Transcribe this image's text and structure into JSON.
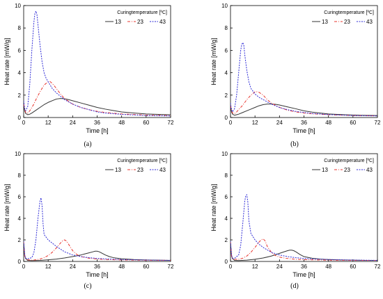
{
  "colors": {
    "13": "#333333",
    "23": "#e8342c",
    "43": "#2d2ad6",
    "axis": "#000000"
  },
  "chart_data": [
    {
      "type": "line",
      "panel_label": "(a)",
      "xlabel": "Time [h]",
      "ylabel": "Heat rate [mW/g]",
      "xlim": [
        0,
        72
      ],
      "ylim": [
        0,
        10
      ],
      "xticks": [
        0,
        12,
        24,
        36,
        48,
        60,
        72
      ],
      "yticks": [
        0,
        2,
        4,
        6,
        8,
        10
      ],
      "legend_title": "Curingtemperature [ºC]",
      "legend_position": "top-right",
      "series": [
        {
          "name": "13",
          "x": [
            0,
            0.5,
            1,
            2,
            3,
            4,
            6,
            8,
            10,
            12,
            14,
            16,
            18,
            20,
            22,
            24,
            28,
            32,
            36,
            40,
            44,
            48,
            54,
            60,
            66,
            72
          ],
          "y": [
            1.1,
            0.6,
            0.35,
            0.25,
            0.3,
            0.4,
            0.65,
            0.9,
            1.15,
            1.35,
            1.5,
            1.65,
            1.7,
            1.68,
            1.6,
            1.5,
            1.3,
            1.1,
            0.9,
            0.75,
            0.62,
            0.5,
            0.4,
            0.32,
            0.28,
            0.25
          ]
        },
        {
          "name": "23",
          "x": [
            0,
            0.5,
            1,
            2,
            3,
            4,
            5,
            6,
            8,
            10,
            12,
            13,
            14,
            16,
            18,
            20,
            24,
            28,
            32,
            36,
            40,
            48,
            60,
            72
          ],
          "y": [
            1.2,
            0.7,
            0.45,
            0.4,
            0.6,
            0.9,
            1.2,
            1.6,
            2.3,
            2.9,
            3.2,
            3.2,
            3.05,
            2.6,
            2.1,
            1.7,
            1.2,
            0.9,
            0.7,
            0.55,
            0.45,
            0.32,
            0.22,
            0.17
          ]
        },
        {
          "name": "43",
          "x": [
            0,
            0.5,
            1,
            2,
            3,
            4,
            5,
            5.5,
            6,
            6.5,
            7,
            8,
            9,
            10,
            11,
            12,
            14,
            16,
            18,
            20,
            24,
            28,
            32,
            36,
            40,
            48,
            60,
            72
          ],
          "y": [
            1.5,
            0.8,
            0.6,
            1.0,
            3.0,
            6.0,
            8.5,
            9.3,
            9.5,
            9.2,
            8.3,
            6.5,
            5.0,
            4.0,
            3.5,
            3.2,
            2.6,
            2.2,
            1.9,
            1.6,
            1.2,
            0.9,
            0.7,
            0.5,
            0.4,
            0.28,
            0.18,
            0.14
          ]
        }
      ]
    },
    {
      "type": "line",
      "panel_label": "(b)",
      "xlabel": "Time [h]",
      "ylabel": "Heat rate [mW/g]",
      "xlim": [
        0,
        72
      ],
      "ylim": [
        0,
        10
      ],
      "xticks": [
        0,
        12,
        24,
        36,
        48,
        60,
        72
      ],
      "yticks": [
        0,
        2,
        4,
        6,
        8,
        10
      ],
      "legend_title": "Curingtemperature [ºC]",
      "legend_position": "top-right",
      "series": [
        {
          "name": "13",
          "x": [
            0,
            0.5,
            1,
            2,
            3,
            4,
            6,
            8,
            10,
            12,
            14,
            16,
            18,
            20,
            22,
            24,
            28,
            32,
            36,
            40,
            48,
            56,
            64,
            72
          ],
          "y": [
            1.0,
            0.5,
            0.3,
            0.2,
            0.25,
            0.3,
            0.45,
            0.6,
            0.75,
            0.9,
            1.05,
            1.15,
            1.2,
            1.2,
            1.18,
            1.12,
            0.95,
            0.78,
            0.6,
            0.48,
            0.32,
            0.25,
            0.2,
            0.18
          ]
        },
        {
          "name": "23",
          "x": [
            0,
            0.5,
            1,
            2,
            3,
            4,
            6,
            8,
            10,
            12,
            13,
            14,
            16,
            18,
            20,
            24,
            28,
            32,
            36,
            40,
            48,
            60,
            72
          ],
          "y": [
            1.1,
            0.6,
            0.4,
            0.35,
            0.5,
            0.7,
            1.1,
            1.6,
            2.0,
            2.3,
            2.3,
            2.25,
            2.0,
            1.6,
            1.3,
            0.9,
            0.65,
            0.5,
            0.4,
            0.33,
            0.25,
            0.18,
            0.15
          ]
        },
        {
          "name": "43",
          "x": [
            0,
            0.5,
            1,
            2,
            3,
            4,
            5,
            5.5,
            6,
            6.5,
            7,
            8,
            9,
            10,
            12,
            14,
            16,
            18,
            20,
            24,
            28,
            32,
            36,
            40,
            48,
            60,
            72
          ],
          "y": [
            1.3,
            0.7,
            0.5,
            0.8,
            2.0,
            4.0,
            6.0,
            6.5,
            6.7,
            6.5,
            5.6,
            4.2,
            3.2,
            2.6,
            2.1,
            1.8,
            1.6,
            1.4,
            1.2,
            0.9,
            0.7,
            0.55,
            0.45,
            0.36,
            0.26,
            0.18,
            0.14
          ]
        }
      ]
    },
    {
      "type": "line",
      "panel_label": "(c)",
      "xlabel": "Time [h]",
      "ylabel": "Heat rate [mW/g]",
      "xlim": [
        0,
        72
      ],
      "ylim": [
        0,
        10
      ],
      "xticks": [
        0,
        12,
        24,
        36,
        48,
        60,
        72
      ],
      "yticks": [
        0,
        2,
        4,
        6,
        8,
        10
      ],
      "legend_title": "Curingtemperature [ºC]",
      "legend_position": "top-right",
      "series": [
        {
          "name": "13",
          "x": [
            0,
            0.5,
            1,
            2,
            4,
            8,
            12,
            16,
            20,
            24,
            28,
            30,
            32,
            34,
            35,
            36,
            37,
            38,
            40,
            42,
            44,
            48,
            54,
            60,
            66,
            72
          ],
          "y": [
            1.8,
            0.5,
            0.25,
            0.1,
            0.08,
            0.1,
            0.15,
            0.22,
            0.32,
            0.45,
            0.6,
            0.7,
            0.8,
            0.9,
            0.95,
            0.95,
            0.9,
            0.8,
            0.6,
            0.45,
            0.35,
            0.25,
            0.18,
            0.14,
            0.12,
            0.1
          ]
        },
        {
          "name": "23",
          "x": [
            0,
            0.5,
            1,
            2,
            4,
            6,
            8,
            10,
            12,
            14,
            16,
            18,
            19,
            20,
            21,
            22,
            24,
            26,
            28,
            32,
            36,
            40,
            48,
            60,
            72
          ],
          "y": [
            1.8,
            0.5,
            0.25,
            0.15,
            0.12,
            0.15,
            0.22,
            0.35,
            0.55,
            0.85,
            1.25,
            1.7,
            1.9,
            2.0,
            1.9,
            1.6,
            1.0,
            0.65,
            0.45,
            0.3,
            0.22,
            0.18,
            0.14,
            0.11,
            0.1
          ]
        },
        {
          "name": "43",
          "x": [
            0,
            0.5,
            1,
            2,
            4,
            5,
            6,
            7,
            8,
            8.5,
            9,
            9.5,
            10,
            12,
            14,
            16,
            20,
            24,
            28,
            32,
            36,
            40,
            48,
            60,
            72
          ],
          "y": [
            1.9,
            0.6,
            0.3,
            0.25,
            0.35,
            0.8,
            2.0,
            4.0,
            5.6,
            5.9,
            5.2,
            3.5,
            2.5,
            2.0,
            1.7,
            1.4,
            0.9,
            0.6,
            0.45,
            0.35,
            0.28,
            0.24,
            0.18,
            0.13,
            0.1
          ]
        }
      ]
    },
    {
      "type": "line",
      "panel_label": "(d)",
      "xlabel": "Time [h]",
      "ylabel": "Heat rate [mW/g]",
      "xlim": [
        0,
        72
      ],
      "ylim": [
        0,
        10
      ],
      "xticks": [
        0,
        12,
        24,
        36,
        48,
        60,
        72
      ],
      "yticks": [
        0,
        2,
        4,
        6,
        8,
        10
      ],
      "legend_title": "Curingtemperature [ºC]",
      "legend_position": "top-right",
      "series": [
        {
          "name": "13",
          "x": [
            0,
            0.5,
            1,
            2,
            4,
            8,
            12,
            16,
            20,
            24,
            26,
            28,
            29,
            30,
            31,
            32,
            34,
            36,
            40,
            44,
            48,
            54,
            60,
            66,
            72
          ],
          "y": [
            1.8,
            0.5,
            0.25,
            0.1,
            0.08,
            0.12,
            0.2,
            0.32,
            0.5,
            0.75,
            0.88,
            1.0,
            1.05,
            1.05,
            1.0,
            0.9,
            0.65,
            0.45,
            0.3,
            0.22,
            0.18,
            0.14,
            0.12,
            0.1,
            0.1
          ]
        },
        {
          "name": "23",
          "x": [
            0,
            0.5,
            1,
            2,
            4,
            6,
            8,
            10,
            12,
            14,
            15,
            16,
            17,
            18,
            20,
            22,
            24,
            28,
            32,
            36,
            40,
            48,
            60,
            72
          ],
          "y": [
            1.8,
            0.5,
            0.25,
            0.2,
            0.2,
            0.3,
            0.5,
            0.85,
            1.3,
            1.8,
            2.0,
            2.1,
            1.9,
            1.4,
            0.85,
            0.55,
            0.4,
            0.27,
            0.2,
            0.17,
            0.15,
            0.12,
            0.1,
            0.1
          ]
        },
        {
          "name": "43",
          "x": [
            0,
            0.5,
            1,
            2,
            4,
            5,
            6,
            7,
            7.5,
            8,
            8.5,
            9,
            10,
            12,
            14,
            16,
            20,
            24,
            28,
            32,
            36,
            40,
            48,
            60,
            72
          ],
          "y": [
            1.9,
            0.6,
            0.3,
            0.3,
            0.6,
            1.5,
            3.5,
            5.6,
            6.1,
            6.2,
            5.5,
            3.8,
            2.6,
            2.0,
            1.6,
            1.3,
            0.85,
            0.6,
            0.45,
            0.35,
            0.28,
            0.24,
            0.18,
            0.13,
            0.1
          ]
        }
      ]
    }
  ]
}
